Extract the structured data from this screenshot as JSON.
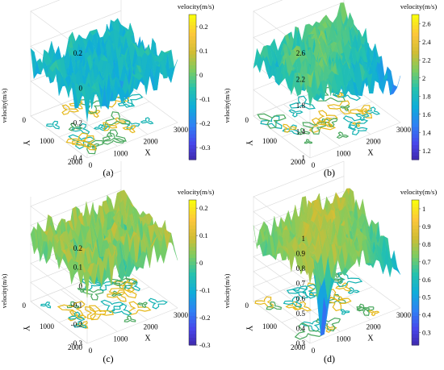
{
  "chart_data": [
    {
      "type": "surface3d",
      "panel_label": "(a)",
      "xlabel": "X",
      "ylabel": "Y",
      "zlabel": "velocity(m/s)",
      "x_ticks": [
        "0",
        "1000",
        "2000",
        "3000"
      ],
      "y_ticks": [
        "0",
        "1000",
        "2000"
      ],
      "z_ticks": [
        "0.2",
        "0",
        "-0.2",
        "-0.4"
      ],
      "zlim": [
        -0.4,
        0.2
      ],
      "colorbar": {
        "title": "velocity(m/s)",
        "range": [
          -0.35,
          0.25
        ],
        "ticks": [
          "0.2",
          "0.1",
          "0",
          "-0.1",
          "-0.2",
          "-0.3"
        ]
      },
      "surface_level": -0.1,
      "surface_amplitude": 0.09,
      "tilt": "flat",
      "has_dip": false,
      "contour_colors": [
        "#13b2b2",
        "#e6b81a",
        "#4aa85e"
      ]
    },
    {
      "type": "surface3d",
      "panel_label": "(b)",
      "xlabel": "X",
      "ylabel": "Y",
      "zlabel": "velocity(m/s)",
      "x_ticks": [
        "0",
        "1000",
        "2000",
        "3000"
      ],
      "y_ticks": [
        "0",
        "1000",
        "2000"
      ],
      "z_ticks": [
        "2.6",
        "2.2",
        "1.8",
        "1.4",
        "1"
      ],
      "zlim": [
        1,
        2.6
      ],
      "colorbar": {
        "title": "velocity(m/s)",
        "range": [
          1.1,
          2.7
        ],
        "ticks": [
          "2.6",
          "2.4",
          "2.2",
          "2",
          "1.8",
          "1.6",
          "1.4",
          "1.2"
        ]
      },
      "surface_level": 2.0,
      "surface_amplitude": 0.22,
      "tilt": "ridge",
      "has_dip": false,
      "contour_colors": [
        "#13b2b2",
        "#e6b81a",
        "#4aa85e"
      ]
    },
    {
      "type": "surface3d",
      "panel_label": "(c)",
      "xlabel": "X",
      "ylabel": "Y",
      "zlabel": "velocity(m/s)",
      "x_ticks": [
        "0",
        "1000",
        "2000",
        "3000"
      ],
      "y_ticks": [
        "0",
        "1000",
        "2000"
      ],
      "z_ticks": [
        "0.2",
        "0.1",
        "0",
        "-0.1",
        "-0.2",
        "-0.3"
      ],
      "zlim": [
        -0.3,
        0.25
      ],
      "colorbar": {
        "title": "velocity(m/s)",
        "range": [
          -0.3,
          0.23
        ],
        "ticks": [
          "0.2",
          "0.1",
          "0",
          "-0.1",
          "-0.2",
          "-0.3"
        ]
      },
      "surface_level": 0.03,
      "surface_amplitude": 0.09,
      "tilt": "flat",
      "has_dip": false,
      "contour_colors": [
        "#13b2b2",
        "#e6b81a",
        "#4aa85e"
      ]
    },
    {
      "type": "surface3d",
      "panel_label": "(d)",
      "xlabel": "X",
      "ylabel": "Y",
      "zlabel": "velocity(m/s)",
      "x_ticks": [
        "0",
        "1000",
        "2000",
        "3000"
      ],
      "y_ticks": [
        "0",
        "1000",
        "2000"
      ],
      "z_ticks": [
        "1",
        "0.9",
        "0.8",
        "0.7",
        "0.6",
        "0.5",
        "0.4",
        "0.3"
      ],
      "zlim": [
        0.3,
        1.0
      ],
      "colorbar": {
        "title": "velocity(m/s)",
        "range": [
          0.23,
          1.05
        ],
        "ticks": [
          "1",
          "0.9",
          "0.8",
          "0.7",
          "0.6",
          "0.5",
          "0.4",
          "0.3"
        ]
      },
      "surface_level": 0.8,
      "surface_amplitude": 0.1,
      "tilt": "ridge",
      "has_dip": true,
      "contour_colors": [
        "#e6b81a",
        "#13b2b2",
        "#4aa85e"
      ]
    }
  ]
}
